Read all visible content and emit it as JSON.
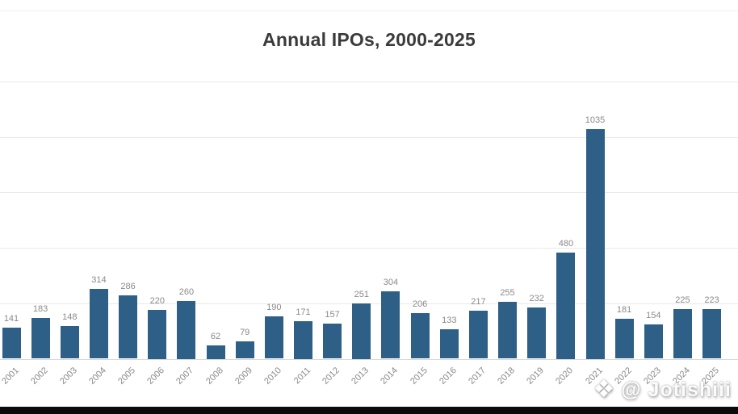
{
  "title": "Annual IPOs, 2000-2025",
  "watermark": {
    "icon": "diamond-logo",
    "text": "@ Jotishiii"
  },
  "chart_data": {
    "type": "bar",
    "title": "Annual IPOs, 2000-2025",
    "xlabel": "",
    "ylabel": "",
    "categories": [
      "2001",
      "2002",
      "2003",
      "2004",
      "2005",
      "2006",
      "2007",
      "2008",
      "2009",
      "2010",
      "2011",
      "2012",
      "2013",
      "2014",
      "2015",
      "2016",
      "2017",
      "2018",
      "2019",
      "2020",
      "2021",
      "2022",
      "2023",
      "2024",
      "2025"
    ],
    "values": [
      141,
      183,
      148,
      314,
      286,
      220,
      260,
      62,
      79,
      190,
      171,
      157,
      251,
      304,
      206,
      133,
      217,
      255,
      232,
      480,
      1035,
      181,
      154,
      225,
      223
    ],
    "ylim": [
      0,
      1250
    ],
    "gridline_values": [
      250,
      500,
      750,
      1000,
      1250
    ],
    "grid": "horizontal only, no y tick labels visible (cropped)",
    "legend": "none",
    "bar_color": "#2e5f86",
    "value_label_color": "#8a8a8a",
    "axis_label_color": "#8a8a8a",
    "note_visible_crop": "2000 bar cut off at left edge of image"
  }
}
